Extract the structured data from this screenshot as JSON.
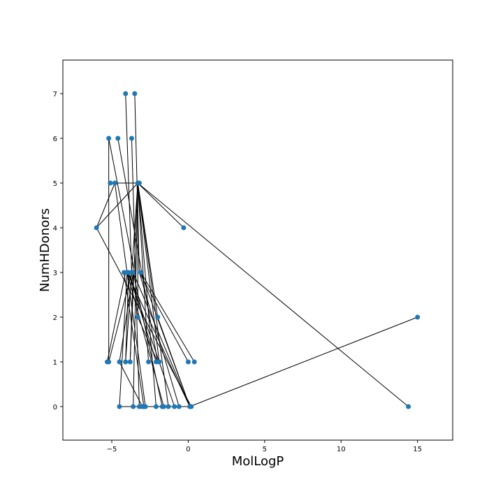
{
  "chart_data": {
    "type": "scatter",
    "xlabel": "MolLogP",
    "ylabel": "NumHDonors",
    "xlim": [
      -8.2,
      17.3
    ],
    "ylim": [
      -0.75,
      7.75
    ],
    "xticks": [
      -5,
      0,
      5,
      10,
      15
    ],
    "xtick_labels": [
      "−5",
      "0",
      "5",
      "10",
      "15"
    ],
    "yticks": [
      0,
      1,
      2,
      3,
      4,
      5,
      6,
      7
    ],
    "ytick_labels": [
      "0",
      "1",
      "2",
      "3",
      "4",
      "5",
      "6",
      "7"
    ],
    "grid": false,
    "marker_color": "#1f77b4",
    "line_color": "#000000",
    "points": [
      {
        "x": -6.0,
        "y": 4
      },
      {
        "x": -5.3,
        "y": 1
      },
      {
        "x": -5.2,
        "y": 1
      },
      {
        "x": -5.2,
        "y": 6
      },
      {
        "x": -5.1,
        "y": 5
      },
      {
        "x": -4.8,
        "y": 5
      },
      {
        "x": -4.6,
        "y": 6
      },
      {
        "x": -4.5,
        "y": 1
      },
      {
        "x": -4.5,
        "y": 0
      },
      {
        "x": -4.2,
        "y": 3
      },
      {
        "x": -4.1,
        "y": 7
      },
      {
        "x": -4.1,
        "y": 1
      },
      {
        "x": -4.0,
        "y": 3
      },
      {
        "x": -3.9,
        "y": 3
      },
      {
        "x": -3.8,
        "y": 1
      },
      {
        "x": -3.7,
        "y": 6
      },
      {
        "x": -3.7,
        "y": 3
      },
      {
        "x": -3.6,
        "y": 0
      },
      {
        "x": -3.6,
        "y": 3
      },
      {
        "x": -3.5,
        "y": 7
      },
      {
        "x": -3.3,
        "y": 5
      },
      {
        "x": -3.3,
        "y": 2
      },
      {
        "x": -3.2,
        "y": 5
      },
      {
        "x": -3.2,
        "y": 0
      },
      {
        "x": -3.1,
        "y": 3
      },
      {
        "x": -3.0,
        "y": 0
      },
      {
        "x": -2.9,
        "y": 0
      },
      {
        "x": -2.8,
        "y": 0
      },
      {
        "x": -2.6,
        "y": 1
      },
      {
        "x": -2.1,
        "y": 0
      },
      {
        "x": -2.1,
        "y": 1
      },
      {
        "x": -2.0,
        "y": 2
      },
      {
        "x": -1.9,
        "y": 1
      },
      {
        "x": -1.7,
        "y": 0
      },
      {
        "x": -1.6,
        "y": 0
      },
      {
        "x": -1.3,
        "y": 0
      },
      {
        "x": -0.9,
        "y": 0
      },
      {
        "x": -0.6,
        "y": 0
      },
      {
        "x": -0.3,
        "y": 4
      },
      {
        "x": 0.0,
        "y": 1
      },
      {
        "x": 0.1,
        "y": 0
      },
      {
        "x": 0.2,
        "y": 0
      },
      {
        "x": 0.4,
        "y": 1
      },
      {
        "x": 14.4,
        "y": 0
      },
      {
        "x": 15.0,
        "y": 2
      }
    ],
    "lines": [
      [
        [
          -6.0,
          4
        ],
        [
          -3.3,
          5
        ]
      ],
      [
        [
          -6.0,
          4
        ],
        [
          -4.8,
          5
        ]
      ],
      [
        [
          -6.0,
          4
        ],
        [
          0.2,
          0
        ]
      ],
      [
        [
          -5.3,
          1
        ],
        [
          -4.1,
          3
        ]
      ],
      [
        [
          -5.2,
          1
        ],
        [
          -3.7,
          3
        ]
      ],
      [
        [
          -5.2,
          1
        ],
        [
          -5.2,
          6
        ]
      ],
      [
        [
          -5.2,
          6
        ],
        [
          -3.5,
          3
        ]
      ],
      [
        [
          -5.1,
          5
        ],
        [
          -3.3,
          5
        ]
      ],
      [
        [
          -4.8,
          5
        ],
        [
          -2.8,
          0
        ]
      ],
      [
        [
          -4.6,
          6
        ],
        [
          -2.0,
          1
        ]
      ],
      [
        [
          -4.5,
          1
        ],
        [
          -3.6,
          3
        ]
      ],
      [
        [
          -4.5,
          1
        ],
        [
          -3.0,
          0
        ]
      ],
      [
        [
          -4.5,
          0
        ],
        [
          -4.0,
          3
        ]
      ],
      [
        [
          -4.5,
          0
        ],
        [
          -2.8,
          0
        ]
      ],
      [
        [
          -4.2,
          3
        ],
        [
          -2.9,
          0
        ]
      ],
      [
        [
          -4.1,
          7
        ],
        [
          -3.7,
          3
        ]
      ],
      [
        [
          -4.1,
          1
        ],
        [
          -3.9,
          3
        ]
      ],
      [
        [
          -4.0,
          3
        ],
        [
          -1.6,
          0
        ]
      ],
      [
        [
          -3.9,
          3
        ],
        [
          -0.9,
          0
        ]
      ],
      [
        [
          -3.8,
          1
        ],
        [
          -3.6,
          3
        ]
      ],
      [
        [
          -3.7,
          6
        ],
        [
          -3.2,
          0
        ]
      ],
      [
        [
          -3.6,
          3
        ],
        [
          -1.7,
          0
        ]
      ],
      [
        [
          -3.5,
          7
        ],
        [
          -3.2,
          3
        ]
      ],
      [
        [
          -3.3,
          5
        ],
        [
          -0.3,
          4
        ]
      ],
      [
        [
          -3.3,
          5
        ],
        [
          14.4,
          0
        ]
      ],
      [
        [
          -3.3,
          5
        ],
        [
          -2.1,
          0
        ]
      ],
      [
        [
          -3.3,
          5
        ],
        [
          -1.3,
          0
        ]
      ],
      [
        [
          -3.3,
          5
        ],
        [
          -1.9,
          1
        ]
      ],
      [
        [
          -3.3,
          5
        ],
        [
          -2.6,
          1
        ]
      ],
      [
        [
          -3.3,
          5
        ],
        [
          -3.6,
          0
        ]
      ],
      [
        [
          -3.3,
          5
        ],
        [
          -3.3,
          2
        ]
      ],
      [
        [
          -3.3,
          5
        ],
        [
          -4.1,
          1
        ]
      ],
      [
        [
          -3.3,
          5
        ],
        [
          -2.0,
          2
        ]
      ],
      [
        [
          -3.3,
          2
        ],
        [
          -2.0,
          1
        ]
      ],
      [
        [
          -3.2,
          3
        ],
        [
          -0.6,
          0
        ]
      ],
      [
        [
          -3.2,
          3
        ],
        [
          0.0,
          1
        ]
      ],
      [
        [
          -3.1,
          3
        ],
        [
          0.4,
          1
        ]
      ],
      [
        [
          -3.1,
          3
        ],
        [
          0.1,
          0
        ]
      ],
      [
        [
          -3.6,
          3
        ],
        [
          0.1,
          0
        ]
      ],
      [
        [
          -3.9,
          3
        ],
        [
          -2.1,
          1
        ]
      ],
      [
        [
          -4.0,
          3
        ],
        [
          0.1,
          0
        ]
      ],
      [
        [
          -2.0,
          2
        ],
        [
          0.1,
          0
        ]
      ],
      [
        [
          -3.3,
          0
        ],
        [
          0.1,
          0
        ]
      ],
      [
        [
          0.1,
          0
        ],
        [
          15.0,
          2
        ]
      ],
      [
        [
          -3.8,
          1
        ],
        [
          -3.3,
          5
        ]
      ]
    ]
  }
}
